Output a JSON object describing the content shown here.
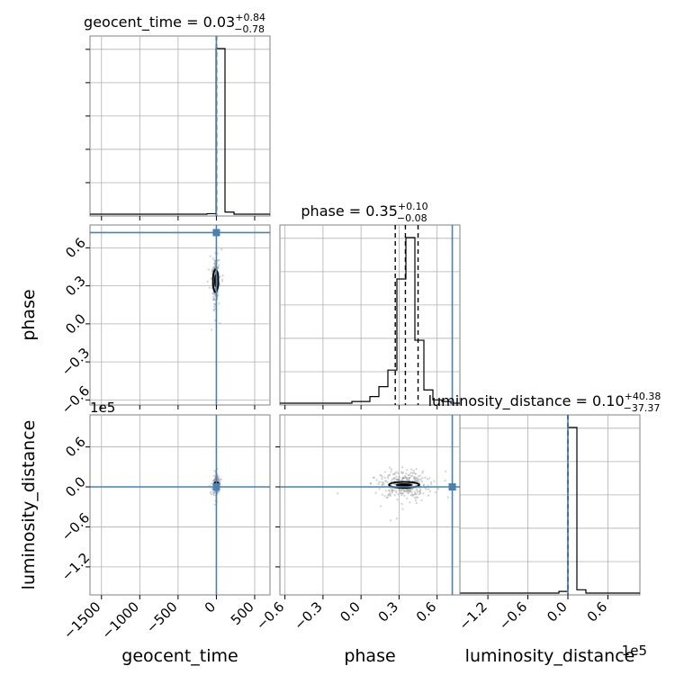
{
  "chart_data": {
    "type": "corner",
    "grid": true,
    "params": [
      "geocent_time",
      "phase",
      "luminosity_distance"
    ],
    "axis_labels": [
      "geocent_time",
      "phase",
      "luminosity_distance"
    ],
    "ranges": [
      [
        -1650,
        700
      ],
      [
        -0.64,
        0.78
      ],
      [
        -162000,
        108000
      ]
    ],
    "truths": [
      0,
      0.72,
      0
    ],
    "truth_color": "#4682b4",
    "titles": [
      {
        "main": "geocent_time = 0.03",
        "sup": "+0.84",
        "sub": "−0.78"
      },
      {
        "main": "phase = 0.35",
        "sup": "+0.10",
        "sub": "−0.08"
      },
      {
        "main": "luminosity_distance = 0.10",
        "sup": "+40.38",
        "sub": "−37.37"
      }
    ],
    "quantiles": [
      [
        -0.75,
        0.03,
        0.87
      ],
      [
        0.27,
        0.35,
        0.45
      ],
      [
        -37.27,
        0.1,
        40.48
      ]
    ],
    "x_ticks": [
      [
        {
          "v": -1500,
          "label": "−1500"
        },
        {
          "v": -1000,
          "label": "−1000"
        },
        {
          "v": -500,
          "label": "−500"
        },
        {
          "v": 0,
          "label": "0"
        },
        {
          "v": 500,
          "label": "500"
        }
      ],
      [
        {
          "v": -0.6,
          "label": "−0.6"
        },
        {
          "v": -0.3,
          "label": "−0.3"
        },
        {
          "v": 0.0,
          "label": "0.0"
        },
        {
          "v": 0.3,
          "label": "0.3"
        },
        {
          "v": 0.6,
          "label": "0.6"
        }
      ],
      [
        {
          "v": -120000,
          "label": "−1.2"
        },
        {
          "v": -60000,
          "label": "−0.6"
        },
        {
          "v": 0,
          "label": "0.0"
        },
        {
          "v": 60000,
          "label": "0.6"
        }
      ]
    ],
    "y_ticks": {
      "phase": [
        {
          "v": 0.6,
          "label": "0.6"
        },
        {
          "v": 0.3,
          "label": "0.3"
        },
        {
          "v": 0.0,
          "label": "0.0"
        },
        {
          "v": -0.3,
          "label": "−0.3"
        },
        {
          "v": -0.6,
          "label": "−0.6"
        }
      ],
      "luminosity_distance": [
        {
          "v": 60000,
          "label": "0.6"
        },
        {
          "v": 0,
          "label": "0.0"
        },
        {
          "v": -60000,
          "label": "−0.6"
        },
        {
          "v": -120000,
          "label": "−1.2"
        }
      ]
    },
    "offset_labels": {
      "y_luminosity_distance": "1e5",
      "x_luminosity_distance": "1e5"
    },
    "histograms": [
      {
        "edges": [
          -1650,
          -1532.5,
          -1415,
          -1297.5,
          -1180,
          -1062.5,
          -945,
          -827.5,
          -710,
          -592.5,
          -475,
          -357.5,
          -240,
          -122.5,
          -5,
          112.5,
          230,
          347.5,
          465,
          582.5,
          700
        ],
        "counts": [
          0,
          0,
          0,
          0,
          0,
          0,
          0,
          0,
          0,
          0,
          0,
          0,
          0,
          0.003,
          1.0,
          0.013,
          0,
          0,
          0,
          0
        ]
      },
      {
        "edges": [
          -0.64,
          -0.569,
          -0.498,
          -0.427,
          -0.356,
          -0.285,
          -0.214,
          -0.143,
          -0.072,
          -0.001,
          0.07,
          0.141,
          0.212,
          0.283,
          0.354,
          0.425,
          0.496,
          0.567,
          0.638,
          0.709,
          0.78
        ],
        "counts": [
          0,
          0,
          0,
          0,
          0,
          0,
          0,
          0,
          0.01,
          0.01,
          0.04,
          0.1,
          0.2,
          0.75,
          1.0,
          0.38,
          0.08,
          0.02,
          0.01,
          0
        ]
      },
      {
        "edges": [
          -162000,
          -148500,
          -135000,
          -121500,
          -108000,
          -94500,
          -81000,
          -67500,
          -54000,
          -40500,
          -27000,
          -13500,
          0,
          13500,
          27000,
          40500,
          54000,
          67500,
          81000,
          94500,
          108000
        ],
        "counts": [
          0,
          0,
          0,
          0,
          0,
          0,
          0,
          0,
          0,
          0,
          0,
          0.01,
          1.0,
          0.02,
          0,
          0,
          0,
          0,
          0,
          0
        ]
      }
    ],
    "pairs": [
      {
        "x": "geocent_time",
        "y": "phase",
        "center": [
          -10,
          0.34
        ],
        "spread": [
          20,
          0.07
        ],
        "ellipse": [
          15,
          0.09
        ]
      },
      {
        "x": "geocent_time",
        "y": "luminosity_distance",
        "center": [
          0,
          3000
        ],
        "spread": [
          15,
          6000
        ],
        "ellipse": [
          20,
          3500
        ]
      },
      {
        "x": "phase",
        "y": "luminosity_distance",
        "center": [
          0.34,
          3000
        ],
        "spread": [
          0.09,
          10000
        ],
        "ellipse": [
          0.12,
          4500
        ]
      }
    ]
  }
}
